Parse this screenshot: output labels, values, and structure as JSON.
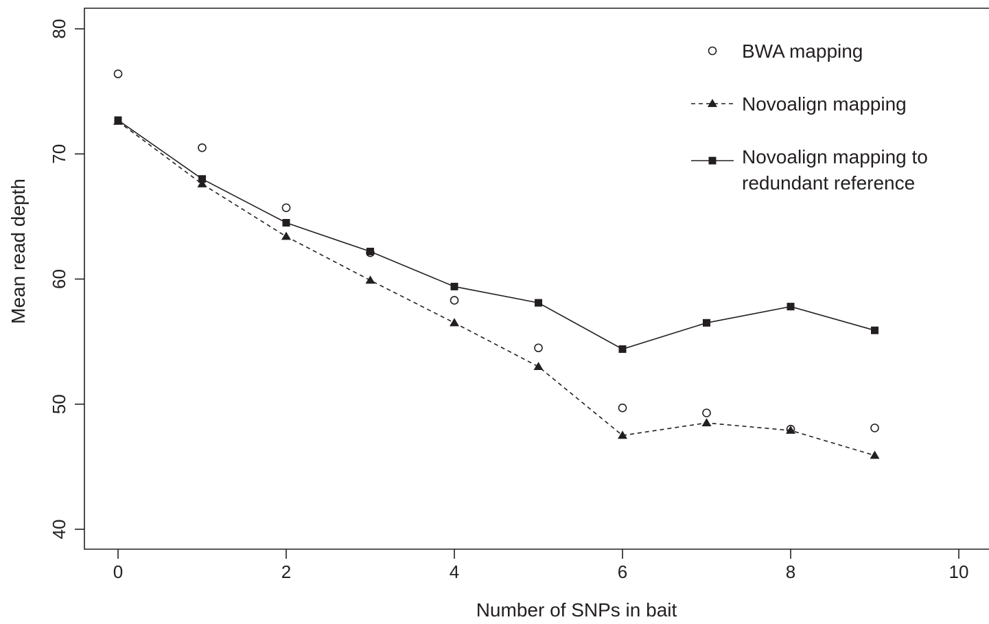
{
  "chart_data": {
    "type": "line",
    "title": "",
    "xlabel": "Number of SNPs in bait",
    "ylabel": "Mean read depth",
    "xlim": [
      0,
      10
    ],
    "ylim": [
      40,
      80
    ],
    "x_ticks": [
      0,
      2,
      4,
      6,
      8,
      10
    ],
    "y_ticks": [
      40,
      50,
      60,
      70,
      80
    ],
    "x_tick_labels": [
      "0",
      "2",
      "4",
      "6",
      "8",
      "10"
    ],
    "y_tick_labels": [
      "40",
      "50",
      "60",
      "70",
      "80"
    ],
    "grid": false,
    "legend_position": "top-right",
    "x": [
      0,
      1,
      2,
      3,
      4,
      5,
      6,
      7,
      8,
      9
    ],
    "series": [
      {
        "name": "BWA mapping",
        "marker": "open-circle",
        "line": "none",
        "values": [
          76.4,
          70.5,
          65.7,
          62.1,
          58.3,
          54.5,
          49.7,
          49.3,
          48.0,
          48.1
        ]
      },
      {
        "name": "Novoalign mapping",
        "marker": "filled-triangle",
        "line": "dashed",
        "values": [
          72.6,
          67.6,
          63.4,
          59.9,
          56.5,
          53.0,
          47.5,
          48.5,
          47.9,
          45.9
        ]
      },
      {
        "name": "Novoalign mapping to",
        "name_line2": "redundant reference",
        "marker": "filled-square",
        "line": "solid",
        "values": [
          72.7,
          68.0,
          64.5,
          62.2,
          59.4,
          58.1,
          54.4,
          56.5,
          57.8,
          55.9
        ]
      }
    ],
    "colors": {
      "ink": "#231f20"
    }
  }
}
